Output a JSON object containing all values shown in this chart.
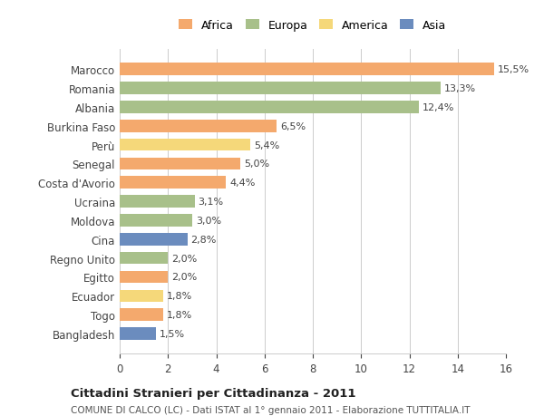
{
  "countries": [
    "Marocco",
    "Romania",
    "Albania",
    "Burkina Faso",
    "Perù",
    "Senegal",
    "Costa d'Avorio",
    "Ucraina",
    "Moldova",
    "Cina",
    "Regno Unito",
    "Egitto",
    "Ecuador",
    "Togo",
    "Bangladesh"
  ],
  "values": [
    15.5,
    13.3,
    12.4,
    6.5,
    5.4,
    5.0,
    4.4,
    3.1,
    3.0,
    2.8,
    2.0,
    2.0,
    1.8,
    1.8,
    1.5
  ],
  "labels": [
    "15,5%",
    "13,3%",
    "12,4%",
    "6,5%",
    "5,4%",
    "5,0%",
    "4,4%",
    "3,1%",
    "3,0%",
    "2,8%",
    "2,0%",
    "2,0%",
    "1,8%",
    "1,8%",
    "1,5%"
  ],
  "colors": [
    "#F4A96D",
    "#A8C08A",
    "#A8C08A",
    "#F4A96D",
    "#F5D87A",
    "#F4A96D",
    "#F4A96D",
    "#A8C08A",
    "#A8C08A",
    "#6B8CBE",
    "#A8C08A",
    "#F4A96D",
    "#F5D87A",
    "#F4A96D",
    "#6B8CBE"
  ],
  "legend_labels": [
    "Africa",
    "Europa",
    "America",
    "Asia"
  ],
  "legend_colors": [
    "#F4A96D",
    "#A8C08A",
    "#F5D87A",
    "#6B8CBE"
  ],
  "title": "Cittadini Stranieri per Cittadinanza - 2011",
  "subtitle": "COMUNE DI CALCO (LC) - Dati ISTAT al 1° gennaio 2011 - Elaborazione TUTTITALIA.IT",
  "xlim": [
    0,
    16
  ],
  "xticks": [
    0,
    2,
    4,
    6,
    8,
    10,
    12,
    14,
    16
  ],
  "bg_color": "#FFFFFF",
  "bar_height": 0.65,
  "grid_color": "#CCCCCC"
}
